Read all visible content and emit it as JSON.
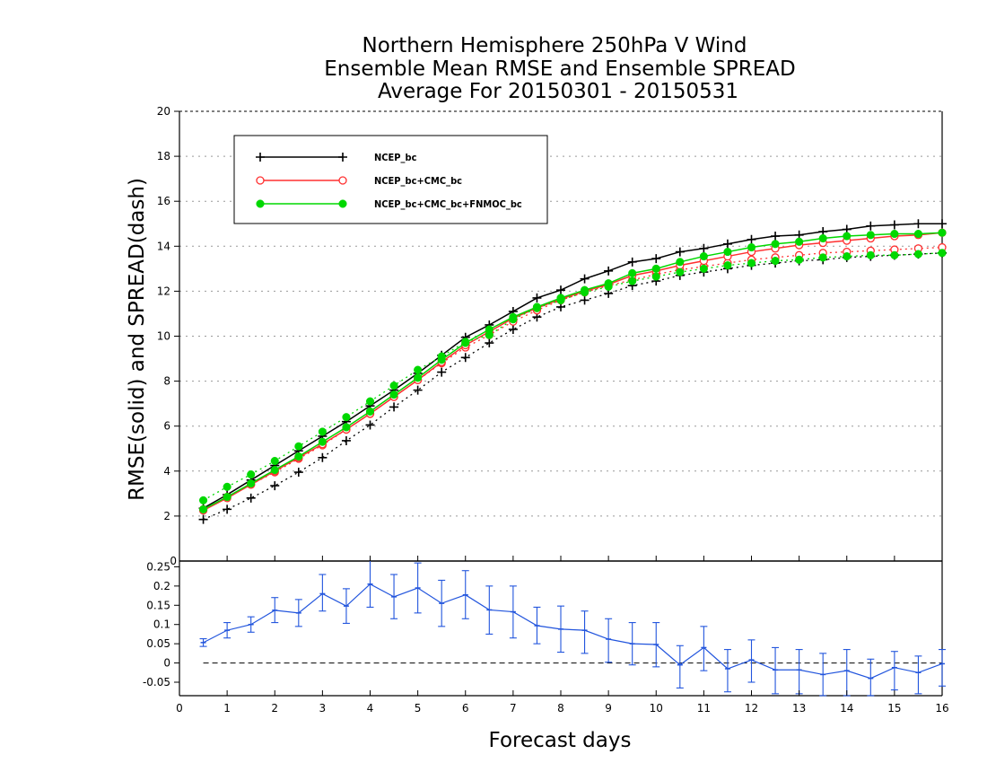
{
  "chart_data": [
    {
      "type": "line",
      "title": [
        "Northern Hemisphere 250hPa V Wind",
        "Ensemble Mean RMSE and Ensemble SPREAD",
        "Average For 20150301 - 20150531"
      ],
      "xlabel": "Forecast days",
      "ylabel": "RMSE(solid)  and  SPREAD(dash)",
      "xlim": [
        0,
        16
      ],
      "ylim": [
        0,
        20
      ],
      "xticks": [
        "0",
        "1",
        "2",
        "3",
        "4",
        "5",
        "6",
        "7",
        "8",
        "9",
        "10",
        "11",
        "12",
        "13",
        "14",
        "15",
        "16"
      ],
      "yticks": [
        "2",
        "4",
        "6",
        "8",
        "10",
        "12",
        "14",
        "16",
        "18",
        "20"
      ],
      "grid": true,
      "legend_position": "top-left",
      "x": [
        0.5,
        1,
        1.5,
        2,
        2.5,
        3,
        3.5,
        4,
        4.5,
        5,
        5.5,
        6,
        6.5,
        7,
        7.5,
        8,
        8.5,
        9,
        9.5,
        10,
        10.5,
        11,
        11.5,
        12,
        12.5,
        13,
        13.5,
        14,
        14.5,
        15,
        15.5,
        16
      ],
      "series": [
        {
          "name": "NCEP_bc",
          "color": "#000000",
          "marker": "plus",
          "rmse": [
            2.35,
            2.95,
            3.6,
            4.25,
            4.9,
            5.55,
            6.2,
            6.9,
            7.6,
            8.35,
            9.15,
            9.95,
            10.5,
            11.1,
            11.7,
            12.05,
            12.55,
            12.9,
            13.3,
            13.45,
            13.75,
            13.9,
            14.1,
            14.3,
            14.45,
            14.5,
            14.65,
            14.75,
            14.9,
            14.95,
            15.0,
            15.0
          ],
          "spread": [
            1.85,
            2.3,
            2.8,
            3.35,
            3.95,
            4.6,
            5.35,
            6.05,
            6.85,
            7.6,
            8.4,
            9.05,
            9.7,
            10.3,
            10.85,
            11.3,
            11.6,
            11.9,
            12.25,
            12.45,
            12.7,
            12.85,
            13.0,
            13.15,
            13.25,
            13.35,
            13.4,
            13.5,
            13.55,
            13.6,
            13.65,
            13.7
          ]
        },
        {
          "name": "NCEP_bc+CMC_bc",
          "color": "#ff3030",
          "marker": "circle",
          "rmse": [
            2.25,
            2.8,
            3.4,
            4.0,
            4.6,
            5.2,
            5.85,
            6.55,
            7.3,
            8.05,
            8.85,
            9.6,
            10.2,
            10.8,
            11.25,
            11.65,
            12.0,
            12.3,
            12.7,
            12.9,
            13.15,
            13.35,
            13.55,
            13.75,
            13.9,
            14.05,
            14.15,
            14.25,
            14.35,
            14.45,
            14.5,
            14.6
          ],
          "spread": [
            2.3,
            2.85,
            3.4,
            3.95,
            4.55,
            5.15,
            5.85,
            6.55,
            7.3,
            8.05,
            8.8,
            9.5,
            10.05,
            10.65,
            11.15,
            11.6,
            11.95,
            12.25,
            12.5,
            12.75,
            12.95,
            13.1,
            13.25,
            13.4,
            13.5,
            13.6,
            13.7,
            13.75,
            13.8,
            13.85,
            13.9,
            13.95
          ]
        },
        {
          "name": "NCEP_bc+CMC_bc+FNMOC_bc",
          "color": "#00d800",
          "marker": "dot",
          "rmse": [
            2.3,
            2.85,
            3.45,
            4.05,
            4.65,
            5.3,
            5.95,
            6.65,
            7.4,
            8.15,
            8.95,
            9.7,
            10.3,
            10.85,
            11.3,
            11.7,
            12.05,
            12.35,
            12.8,
            13.0,
            13.3,
            13.55,
            13.75,
            13.95,
            14.1,
            14.2,
            14.35,
            14.45,
            14.5,
            14.55,
            14.55,
            14.6
          ],
          "spread": [
            2.7,
            3.3,
            3.85,
            4.45,
            5.1,
            5.75,
            6.4,
            7.1,
            7.8,
            8.5,
            9.1,
            9.75,
            10.05,
            10.75,
            11.25,
            11.6,
            11.95,
            12.2,
            12.45,
            12.65,
            12.85,
            13.0,
            13.15,
            13.25,
            13.35,
            13.4,
            13.5,
            13.55,
            13.6,
            13.6,
            13.65,
            13.7
          ]
        }
      ]
    },
    {
      "type": "line",
      "xlim": [
        0,
        16
      ],
      "ylim": [
        -0.085,
        0.265
      ],
      "yticks": [
        "-0.05",
        "0",
        "0.05",
        "0.1",
        "0.15",
        "0.2",
        "0.25"
      ],
      "color": "#2255dd",
      "error_bars": true,
      "reference_line": 0,
      "x": [
        0.5,
        1,
        1.5,
        2,
        2.5,
        3,
        3.5,
        4,
        4.5,
        5,
        5.5,
        6,
        6.5,
        7,
        7.5,
        8,
        8.5,
        9,
        9.5,
        10,
        10.5,
        11,
        11.5,
        12,
        12.5,
        13,
        13.5,
        14,
        14.5,
        15,
        15.5,
        16
      ],
      "values": [
        0.053,
        0.085,
        0.1,
        0.137,
        0.13,
        0.18,
        0.148,
        0.205,
        0.172,
        0.195,
        0.155,
        0.177,
        0.138,
        0.133,
        0.097,
        0.088,
        0.085,
        0.062,
        0.05,
        0.048,
        -0.005,
        0.04,
        -0.015,
        0.008,
        -0.018,
        -0.018,
        -0.03,
        -0.02,
        -0.04,
        -0.012,
        -0.025,
        -0.002
      ],
      "err_low": [
        0.043,
        0.065,
        0.08,
        0.105,
        0.095,
        0.135,
        0.103,
        0.145,
        0.115,
        0.13,
        0.095,
        0.115,
        0.075,
        0.065,
        0.05,
        0.028,
        0.025,
        0.002,
        -0.005,
        -0.01,
        -0.065,
        -0.02,
        -0.075,
        -0.05,
        -0.08,
        -0.08,
        -0.085,
        -0.085,
        -0.085,
        -0.07,
        -0.08,
        -0.06
      ],
      "err_high": [
        0.063,
        0.105,
        0.12,
        0.17,
        0.165,
        0.23,
        0.193,
        0.27,
        0.23,
        0.26,
        0.215,
        0.24,
        0.2,
        0.2,
        0.145,
        0.148,
        0.135,
        0.115,
        0.105,
        0.105,
        0.045,
        0.095,
        0.035,
        0.06,
        0.04,
        0.035,
        0.025,
        0.035,
        0.01,
        0.03,
        0.018,
        0.035
      ]
    }
  ]
}
